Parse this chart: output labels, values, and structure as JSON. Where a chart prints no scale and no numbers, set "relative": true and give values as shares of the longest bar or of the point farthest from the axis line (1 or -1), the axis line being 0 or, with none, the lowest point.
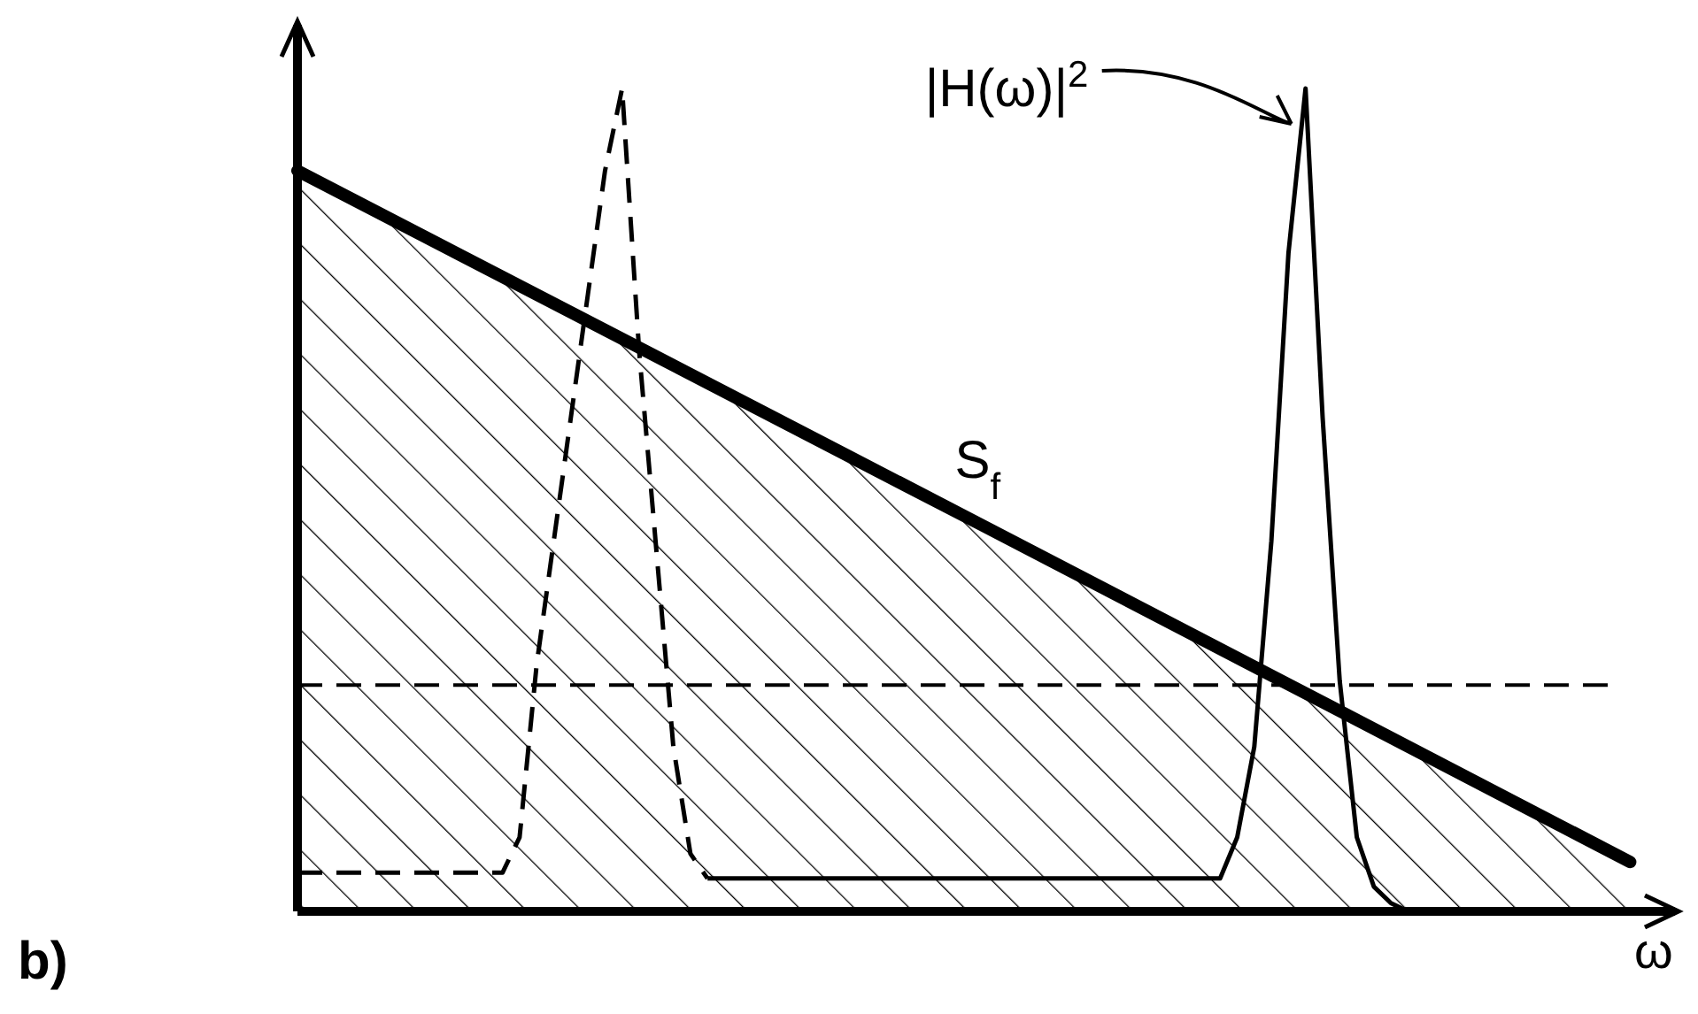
{
  "chart_data": {
    "type": "line",
    "relative": true,
    "xlabel": "ω",
    "categories": [
      null,
      null,
      null,
      null,
      null,
      null,
      null,
      null,
      null,
      null,
      null,
      null,
      null,
      null,
      null,
      null,
      null,
      null,
      null,
      null,
      null,
      null,
      null,
      null,
      null,
      null,
      null,
      null,
      null,
      null,
      null,
      null,
      null,
      null,
      null,
      null,
      null,
      null,
      null,
      null,
      null,
      null,
      null,
      null,
      null,
      null,
      null,
      null,
      null,
      null,
      null,
      null,
      null,
      null,
      null,
      null,
      null,
      null,
      null,
      null,
      null,
      null,
      null,
      null,
      null,
      null,
      null,
      null,
      null,
      null,
      null,
      null,
      null,
      null,
      null,
      null,
      null,
      null,
      null,
      null,
      null
    ],
    "annotations": [
      "|H(ω)|$^{2}$",
      "b)"
    ],
    "ref_lines": [
      {
        "axis": "y",
        "value": 0.275,
        "line_style": "dashed",
        "color": "#000000"
      }
    ],
    "series": [
      {
        "name": "S$_{f}$",
        "type": "area",
        "color": "#000000",
        "values": [
          0.9,
          null,
          null,
          null,
          null,
          null,
          null,
          null,
          null,
          null,
          null,
          null,
          null,
          null,
          null,
          null,
          null,
          null,
          null,
          null,
          null,
          null,
          null,
          null,
          null,
          null,
          null,
          null,
          null,
          null,
          null,
          null,
          null,
          null,
          null,
          null,
          null,
          null,
          null,
          null,
          0.47,
          null,
          null,
          null,
          null,
          null,
          null,
          null,
          null,
          null,
          null,
          null,
          null,
          null,
          null,
          null,
          null,
          null,
          null,
          null,
          null,
          null,
          null,
          null,
          null,
          null,
          null,
          null,
          null,
          null,
          null,
          null,
          null,
          null,
          null,
          null,
          null,
          null,
          0.06,
          null,
          null
        ]
      },
      {
        "line_style": "dashed",
        "color": "#000000",
        "values": [
          0.047,
          0.047,
          0.047,
          0.047,
          0.047,
          0.047,
          0.047,
          0.047,
          0.047,
          0.047,
          0.047,
          0.047,
          0.047,
          0.09,
          0.3,
          0.45,
          0.6,
          0.75,
          0.9,
          1,
          0.68,
          0.44,
          0.2,
          0.07,
          0.04,
          null,
          null,
          null,
          null,
          null,
          null,
          null,
          null,
          null,
          null,
          null,
          null,
          null,
          null,
          null,
          null,
          null,
          null,
          null,
          null,
          null,
          null,
          null,
          null,
          null,
          null,
          null,
          null,
          null,
          null,
          null,
          null,
          null,
          null,
          null,
          null,
          null,
          null,
          null,
          null,
          null,
          null,
          null,
          null,
          null,
          null,
          null,
          null,
          null,
          null,
          null,
          null,
          null,
          null,
          null,
          null
        ]
      },
      {
        "line_style": "solid",
        "color": "#000000",
        "values": [
          null,
          null,
          null,
          null,
          null,
          null,
          null,
          null,
          null,
          null,
          null,
          null,
          null,
          null,
          null,
          null,
          null,
          null,
          null,
          null,
          null,
          null,
          null,
          null,
          0.04,
          0.04,
          0.04,
          0.04,
          0.04,
          0.04,
          0.04,
          0.04,
          0.04,
          0.04,
          0.04,
          0.04,
          0.04,
          0.04,
          0.04,
          0.04,
          0.04,
          0.04,
          0.04,
          0.04,
          0.04,
          0.04,
          0.04,
          0.04,
          0.04,
          0.04,
          0.04,
          0.04,
          0.04,
          0.04,
          0.04,
          0.09,
          0.2,
          0.45,
          0.8,
          1,
          0.6,
          0.28,
          0.09,
          0.03,
          0.01,
          0,
          0,
          0,
          null,
          null,
          null,
          null,
          null,
          null,
          null,
          null,
          null,
          null,
          null,
          null,
          null
        ]
      }
    ]
  }
}
